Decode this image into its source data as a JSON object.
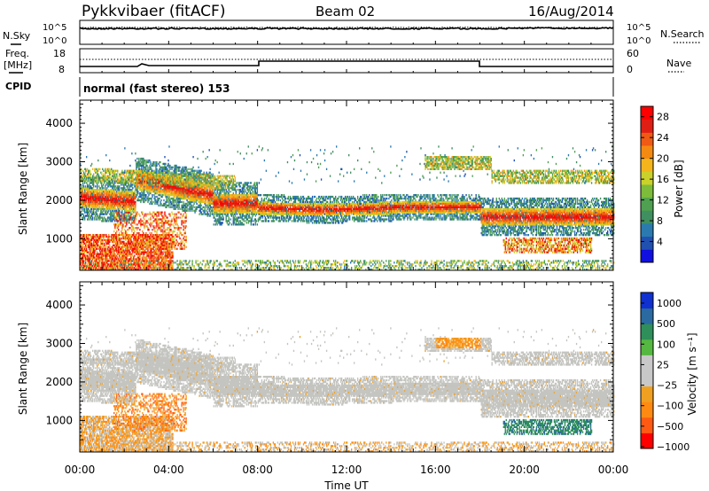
{
  "header": {
    "title": "Pykkvibaer (fitACF)",
    "beam": "Beam 02",
    "date": "16/Aug/2014"
  },
  "status_panels": {
    "nsky_label": "N.Sky",
    "nsearch_label": "N.Search",
    "noise_axis_ticks": [
      "10^5",
      "10^0"
    ],
    "freq_label": "Freq.",
    "freq_unit": "[MHz]",
    "freq_ticks": [
      "18",
      "8"
    ],
    "nave_label": "Nave",
    "nave_ticks": [
      "60",
      "0"
    ],
    "cpid_label": "CPID",
    "cpid_value": "normal (fast stereo) 153"
  },
  "chart_data": [
    {
      "type": "heatmap",
      "title": "",
      "xlabel": "",
      "ylabel": "Slant Range [km]",
      "xlim": [
        "00:00",
        "24:00"
      ],
      "ylim": [
        180,
        4600
      ],
      "yticks": [
        "1000",
        "2000",
        "3000",
        "4000"
      ],
      "colorbar": {
        "label": "Power [dB]",
        "ticks": [
          "28",
          "24",
          "20",
          "16",
          "12",
          "8",
          "4"
        ],
        "range": [
          0,
          30
        ]
      }
    },
    {
      "type": "heatmap",
      "title": "",
      "xlabel": "Time UT",
      "ylabel": "Slant Range [km]",
      "xlim": [
        "00:00",
        "24:00"
      ],
      "ylim": [
        180,
        4600
      ],
      "yticks": [
        "1000",
        "2000",
        "3000",
        "4000"
      ],
      "xticks": [
        "00:00",
        "04:00",
        "08:00",
        "12:00",
        "16:00",
        "20:00",
        "00:00"
      ],
      "colorbar": {
        "label": "Velocity [m s⁻¹]",
        "ticks": [
          "1000",
          "500",
          "100",
          "25",
          "−25",
          "−100",
          "−500",
          "−1000"
        ]
      }
    }
  ],
  "colors": {
    "power_scale": [
      "#1010e0",
      "#2050b0",
      "#2a7ab0",
      "#3f8f60",
      "#4fa050",
      "#7dbb3a",
      "#c9d12a",
      "#f3b51b",
      "#f58a12",
      "#ef5a14",
      "#e01f14",
      "#ff0000"
    ],
    "velocity_scale": [
      "#ff0000",
      "#ff5a14",
      "#ff8a12",
      "#f0a020",
      "#c8c8c8",
      "#c8c8c8",
      "#55b840",
      "#2e8f5a",
      "#2a6aa0",
      "#1030d0"
    ],
    "ground_scatter": "#c4c4c0"
  }
}
